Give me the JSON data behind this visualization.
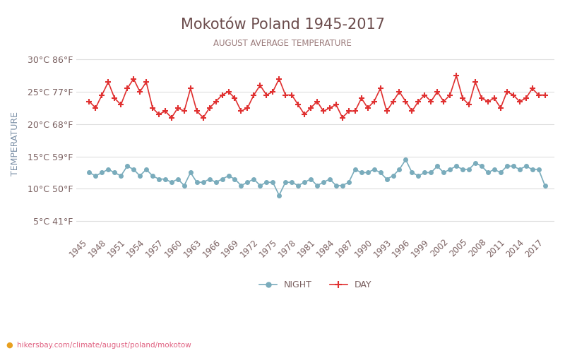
{
  "title": "Mokotów Poland 1945-2017",
  "subtitle": "AUGUST AVERAGE TEMPERATURE",
  "ylabel": "TEMPERATURE",
  "watermark": "hikersbay.com/climate/august/poland/mokotow",
  "background_color": "#ffffff",
  "grid_color": "#dddddd",
  "title_color": "#6b4c4c",
  "subtitle_color": "#9b7b7b",
  "axis_label_color": "#7a8fa6",
  "tick_color": "#7a6060",
  "years": [
    1945,
    1946,
    1947,
    1948,
    1949,
    1950,
    1951,
    1952,
    1953,
    1954,
    1955,
    1956,
    1957,
    1958,
    1959,
    1960,
    1961,
    1962,
    1963,
    1964,
    1965,
    1966,
    1967,
    1968,
    1969,
    1970,
    1971,
    1972,
    1973,
    1974,
    1975,
    1976,
    1977,
    1978,
    1979,
    1980,
    1981,
    1982,
    1983,
    1984,
    1985,
    1986,
    1987,
    1988,
    1989,
    1990,
    1991,
    1992,
    1993,
    1994,
    1995,
    1996,
    1997,
    1998,
    1999,
    2000,
    2001,
    2002,
    2003,
    2004,
    2005,
    2006,
    2007,
    2008,
    2009,
    2010,
    2011,
    2012,
    2013,
    2014,
    2015,
    2016,
    2017
  ],
  "day_values": [
    23.5,
    22.5,
    24.5,
    26.5,
    24.0,
    23.0,
    25.5,
    27.0,
    25.0,
    26.5,
    22.5,
    21.5,
    22.0,
    21.0,
    22.5,
    22.0,
    25.5,
    22.0,
    21.0,
    22.5,
    23.5,
    24.5,
    25.0,
    24.0,
    22.0,
    22.5,
    24.5,
    26.0,
    24.5,
    25.0,
    27.0,
    24.5,
    24.5,
    23.0,
    21.5,
    22.5,
    23.5,
    22.0,
    22.5,
    23.0,
    21.0,
    22.0,
    22.0,
    24.0,
    22.5,
    23.5,
    25.5,
    22.0,
    23.5,
    25.0,
    23.5,
    22.0,
    23.5,
    24.5,
    23.5,
    25.0,
    23.5,
    24.5,
    27.5,
    24.0,
    23.0,
    26.5,
    24.0,
    23.5,
    24.0,
    22.5,
    25.0,
    24.5,
    23.5,
    24.0,
    25.5,
    24.5,
    24.5
  ],
  "night_values": [
    12.5,
    12.0,
    12.5,
    13.0,
    12.5,
    12.0,
    13.5,
    13.0,
    12.0,
    13.0,
    12.0,
    11.5,
    11.5,
    11.0,
    11.5,
    10.5,
    12.5,
    11.0,
    11.0,
    11.5,
    11.0,
    11.5,
    12.0,
    11.5,
    10.5,
    11.0,
    11.5,
    10.5,
    11.0,
    11.0,
    9.0,
    11.0,
    11.0,
    10.5,
    11.0,
    11.5,
    10.5,
    11.0,
    11.5,
    10.5,
    10.5,
    11.0,
    13.0,
    12.5,
    12.5,
    13.0,
    12.5,
    11.5,
    12.0,
    13.0,
    14.5,
    12.5,
    12.0,
    12.5,
    12.5,
    13.5,
    12.5,
    13.0,
    13.5,
    13.0,
    13.0,
    14.0,
    13.5,
    12.5,
    13.0,
    12.5,
    13.5,
    13.5,
    13.0,
    13.5,
    13.0,
    13.0,
    10.5
  ],
  "day_color": "#e03030",
  "night_color": "#7aacbc",
  "ylim": [
    3,
    31
  ],
  "yticks_c": [
    5,
    10,
    15,
    20,
    25,
    30
  ],
  "yticks_f": [
    41,
    50,
    59,
    68,
    77,
    86
  ],
  "xticks": [
    1945,
    1948,
    1951,
    1954,
    1957,
    1960,
    1963,
    1966,
    1969,
    1972,
    1975,
    1978,
    1981,
    1984,
    1987,
    1990,
    1993,
    1996,
    1999,
    2002,
    2005,
    2008,
    2011,
    2014,
    2017
  ]
}
